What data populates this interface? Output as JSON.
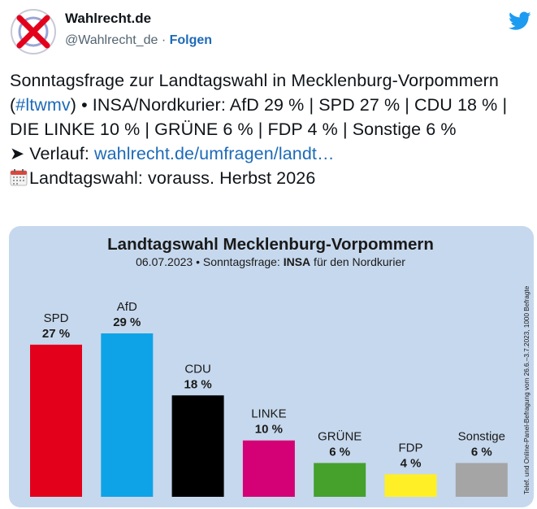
{
  "author": {
    "name": "Wahlrecht.de",
    "handle": "@Wahlrecht_de",
    "separator": "·",
    "follow_label": "Folgen"
  },
  "icons": {
    "avatar": "crossed-ballot-avatar",
    "brand": "twitter-bird-icon",
    "calendar": "calendar-icon",
    "arrow": "arrow-right-icon"
  },
  "tweet": {
    "line1_before": "Sonntagsfrage zur Landtagswahl in Mecklenburg-Vorpommern (",
    "hashtag": "#ltwmv",
    "line1_after": ") • INSA/Nordkurier: AfD 29 % | SPD 27 % | CDU 18 % | DIE LINKE 10 % | GRÜNE 6 % | FDP 4 % | Sonstige 6 %",
    "arrow_glyph": "➤",
    "verlauf_label": " Verlauf: ",
    "verlauf_link": "wahlrecht.de/umfragen/landt…",
    "election_line": "Landtagswahl: vorauss. Herbst 2026"
  },
  "colors": {
    "link": "#1d6ab8",
    "media_bg": "#c6d8ed",
    "avatar_x": "#e3001b"
  },
  "chart_data": {
    "type": "bar",
    "title": "Landtagswahl Mecklenburg-Vorpommern",
    "subtitle_prefix": "06.07.2023 • Sonntagsfrage: ",
    "subtitle_institute": "INSA",
    "subtitle_suffix": " für den Nordkurier",
    "side_note": "Telef. und Online-Panel-Befragung vom 26.6.–3.7.2023, 1000 Befragte",
    "categories": [
      "SPD",
      "AfD",
      "CDU",
      "LINKE",
      "GRÜNE",
      "FDP",
      "Sonstige"
    ],
    "values": [
      27,
      29,
      18,
      10,
      6,
      4,
      6
    ],
    "value_labels": [
      "27 %",
      "29 %",
      "18 %",
      "10 %",
      "6 %",
      "4 %",
      "6 %"
    ],
    "colors": [
      "#e3001b",
      "#0ea3e6",
      "#000000",
      "#d40075",
      "#45a02c",
      "#ffef26",
      "#a5a5a5"
    ],
    "ylim": [
      0,
      35
    ],
    "grid": false
  }
}
